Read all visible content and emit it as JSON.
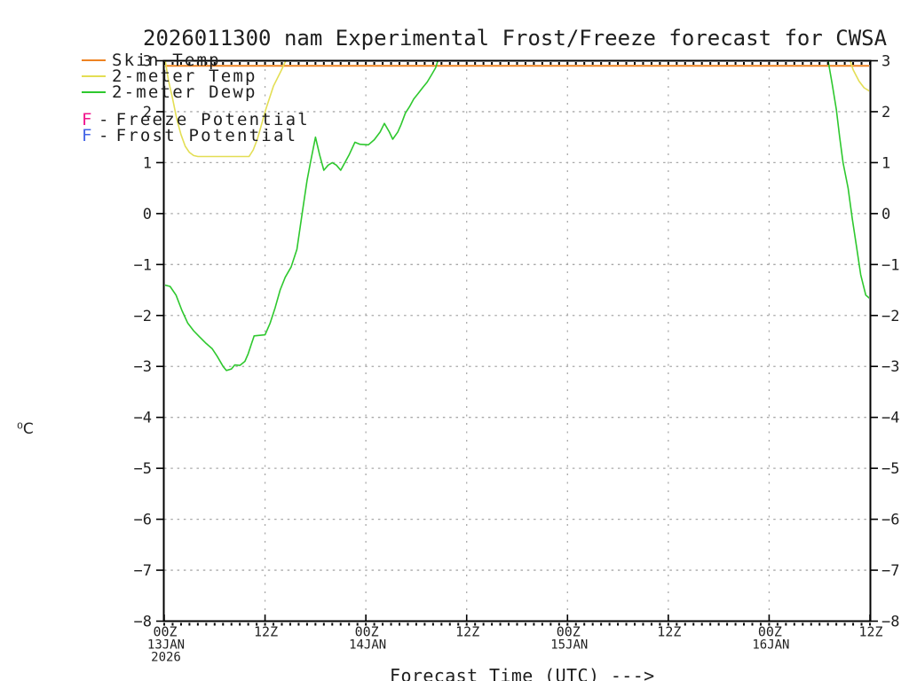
{
  "title": "2026011300 nam Experimental Frost/Freeze forecast for CWSA",
  "legend": {
    "series": [
      {
        "label": "Skin Temp",
        "color": "#ee8322"
      },
      {
        "label": "2-meter Temp",
        "color": "#e3de54"
      },
      {
        "label": "2-meter Dewp",
        "color": "#2ec82e"
      }
    ],
    "flags": [
      {
        "letter": "F",
        "dash": "-",
        "label": "Freeze Potential",
        "color": "#f0138c"
      },
      {
        "letter": "F",
        "dash": "-",
        "label": "Frost Potential",
        "color": "#4263e6"
      }
    ]
  },
  "y_axis": {
    "unit_label": "⁰C",
    "max": 3,
    "min": -8,
    "tick_step": 1
  },
  "x_axis": {
    "label": "Forecast Time (UTC) --->",
    "hours_total": 84,
    "ticks": [
      {
        "hour": 0,
        "time": "00Z",
        "date": "13JAN",
        "year": "2026"
      },
      {
        "hour": 12,
        "time": "12Z",
        "date": "",
        "year": ""
      },
      {
        "hour": 24,
        "time": "00Z",
        "date": "14JAN",
        "year": ""
      },
      {
        "hour": 36,
        "time": "12Z",
        "date": "",
        "year": ""
      },
      {
        "hour": 48,
        "time": "00Z",
        "date": "15JAN",
        "year": ""
      },
      {
        "hour": 60,
        "time": "12Z",
        "date": "",
        "year": ""
      },
      {
        "hour": 72,
        "time": "00Z",
        "date": "16JAN",
        "year": ""
      },
      {
        "hour": 84,
        "time": "12Z",
        "date": "",
        "year": ""
      }
    ]
  },
  "chart_data": {
    "type": "line",
    "title": "2026011300 nam Experimental Frost/Freeze forecast for CWSA",
    "xlabel": "Forecast Time (UTC) --->",
    "ylabel": "⁰C",
    "x_unit": "forecast hour after 00Z 13JAN2026",
    "xlim": [
      0,
      84
    ],
    "ylim": [
      -8,
      3
    ],
    "grid": "dotted, every 1 degC horizontally and every 12 h vertically",
    "legend_position": "top-left, overlapping plot",
    "series": [
      {
        "name": "Skin Temp",
        "color": "#ee8322",
        "width": 2,
        "segments": [
          [
            [
              0,
              2.9
            ],
            [
              84,
              2.9
            ]
          ]
        ]
      },
      {
        "name": "2-meter Temp",
        "color": "#e3de54",
        "width": 1.6,
        "segments": [
          [
            [
              0,
              3.12
            ],
            [
              0.5,
              2.62
            ],
            [
              1,
              2.25
            ],
            [
              1.5,
              1.85
            ],
            [
              2,
              1.55
            ],
            [
              2.5,
              1.32
            ],
            [
              3,
              1.2
            ],
            [
              3.5,
              1.14
            ],
            [
              4,
              1.12
            ],
            [
              10.1,
              1.12
            ],
            [
              10.6,
              1.25
            ],
            [
              11.1,
              1.47
            ],
            [
              12.1,
              2.05
            ],
            [
              13,
              2.5
            ],
            [
              13.9,
              2.8
            ],
            [
              14.8,
              3.12
            ]
          ],
          [
            [
              81.4,
              3.12
            ],
            [
              82,
              2.82
            ],
            [
              82.7,
              2.6
            ],
            [
              83.3,
              2.47
            ],
            [
              84,
              2.4
            ]
          ]
        ]
      },
      {
        "name": "2-meter Dewp",
        "color": "#2ec82e",
        "width": 1.6,
        "segments": [
          [
            [
              0,
              -1.4
            ],
            [
              0.7,
              -1.43
            ],
            [
              1.4,
              -1.6
            ],
            [
              2.1,
              -1.9
            ],
            [
              2.8,
              -2.15
            ],
            [
              3.5,
              -2.3
            ],
            [
              4.2,
              -2.42
            ],
            [
              5,
              -2.55
            ],
            [
              5.7,
              -2.65
            ],
            [
              6.3,
              -2.8
            ],
            [
              7,
              -3.0
            ],
            [
              7.4,
              -3.08
            ],
            [
              8,
              -3.05
            ],
            [
              8.4,
              -2.97
            ],
            [
              9,
              -2.98
            ],
            [
              9.6,
              -2.9
            ],
            [
              10,
              -2.75
            ],
            [
              10.4,
              -2.55
            ],
            [
              10.7,
              -2.4
            ],
            [
              12,
              -2.38
            ],
            [
              12.6,
              -2.15
            ],
            [
              13.2,
              -1.85
            ],
            [
              13.8,
              -1.5
            ],
            [
              14.4,
              -1.25
            ],
            [
              15.1,
              -1.05
            ],
            [
              15.8,
              -0.7
            ],
            [
              16.5,
              0.1
            ],
            [
              17,
              0.65
            ],
            [
              17.4,
              1.0
            ],
            [
              18,
              1.5
            ],
            [
              18.5,
              1.15
            ],
            [
              19,
              0.85
            ],
            [
              19.5,
              0.95
            ],
            [
              20,
              1.0
            ],
            [
              20.5,
              0.95
            ],
            [
              21,
              0.85
            ],
            [
              21.5,
              1.0
            ],
            [
              22,
              1.15
            ],
            [
              22.7,
              1.4
            ],
            [
              23.3,
              1.36
            ],
            [
              24.3,
              1.35
            ],
            [
              25,
              1.45
            ],
            [
              25.7,
              1.6
            ],
            [
              26.2,
              1.77
            ],
            [
              26.8,
              1.6
            ],
            [
              27.2,
              1.46
            ],
            [
              27.8,
              1.6
            ],
            [
              28.2,
              1.75
            ],
            [
              28.7,
              1.97
            ],
            [
              29.2,
              2.1
            ],
            [
              29.7,
              2.25
            ],
            [
              30.2,
              2.35
            ],
            [
              30.8,
              2.48
            ],
            [
              31.3,
              2.58
            ],
            [
              31.8,
              2.72
            ],
            [
              32.3,
              2.86
            ],
            [
              32.8,
              3.12
            ]
          ],
          [
            [
              78.9,
              3.12
            ],
            [
              79.5,
              2.55
            ],
            [
              80,
              2.05
            ],
            [
              80.4,
              1.5
            ],
            [
              80.8,
              1.0
            ],
            [
              81.4,
              0.5
            ],
            [
              81.9,
              -0.1
            ],
            [
              82.4,
              -0.65
            ],
            [
              82.9,
              -1.2
            ],
            [
              83.5,
              -1.6
            ],
            [
              84,
              -1.67
            ]
          ]
        ]
      }
    ],
    "freeze_frost_marks": []
  },
  "style": {
    "grid_color": "#a8a8a8",
    "axis_color": "#000000",
    "text_color": "#1f1f1f",
    "background": "#ffffff"
  }
}
